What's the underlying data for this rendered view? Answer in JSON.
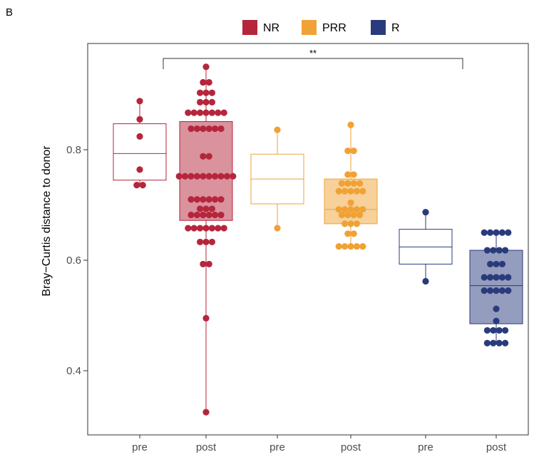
{
  "panel_label": "B",
  "chart_data": {
    "type": "box",
    "ylabel": "Bray−Curtis distance to donor",
    "ylim": [
      0.28,
      0.98
    ],
    "yticks": [
      0.4,
      0.6,
      0.8
    ],
    "ytick_labels": [
      "0.4",
      "0.6",
      "0.8"
    ],
    "legend": {
      "position": "top",
      "entries": [
        {
          "label": "NR",
          "color": "#b5263c"
        },
        {
          "label": "PRR",
          "color": "#f0a236"
        },
        {
          "label": "R",
          "color": "#2a3b7c"
        }
      ]
    },
    "significance": {
      "from": 1,
      "to": 4,
      "label": "**"
    },
    "groups": [
      {
        "category": "pre",
        "response": "NR",
        "color": "#b5263c",
        "filled": false,
        "box": {
          "q1": 0.745,
          "median": 0.793,
          "q3": 0.847,
          "whisker_low": 0.734,
          "whisker_high": 0.888
        },
        "points": [
          0.888,
          0.855,
          0.824,
          0.764,
          0.736,
          0.736
        ]
      },
      {
        "category": "post",
        "response": "NR",
        "color": "#b5263c",
        "filled": true,
        "box": {
          "q1": 0.672,
          "median": 0.752,
          "q3": 0.851,
          "whisker_low": 0.325,
          "whisker_high": 0.95
        },
        "points": [
          0.95,
          0.922,
          0.922,
          0.903,
          0.903,
          0.903,
          0.886,
          0.886,
          0.886,
          0.867,
          0.867,
          0.867,
          0.867,
          0.867,
          0.867,
          0.867,
          0.838,
          0.838,
          0.838,
          0.838,
          0.838,
          0.838,
          0.788,
          0.788,
          0.752,
          0.752,
          0.752,
          0.752,
          0.752,
          0.752,
          0.752,
          0.752,
          0.752,
          0.752,
          0.71,
          0.71,
          0.71,
          0.71,
          0.71,
          0.71,
          0.693,
          0.693,
          0.693,
          0.682,
          0.682,
          0.682,
          0.682,
          0.682,
          0.682,
          0.658,
          0.658,
          0.658,
          0.658,
          0.658,
          0.658,
          0.658,
          0.633,
          0.633,
          0.633,
          0.593,
          0.593,
          0.495,
          0.325
        ]
      },
      {
        "category": "pre",
        "response": "PRR",
        "color": "#f0a236",
        "filled": false,
        "box": {
          "q1": 0.702,
          "median": 0.747,
          "q3": 0.792,
          "whisker_low": 0.658,
          "whisker_high": 0.836
        },
        "points": [
          0.836,
          0.658
        ]
      },
      {
        "category": "post",
        "response": "PRR",
        "color": "#f0a236",
        "filled": true,
        "box": {
          "q1": 0.666,
          "median": 0.692,
          "q3": 0.747,
          "whisker_low": 0.625,
          "whisker_high": 0.845
        },
        "points": [
          0.845,
          0.798,
          0.798,
          0.755,
          0.755,
          0.739,
          0.739,
          0.739,
          0.739,
          0.725,
          0.725,
          0.725,
          0.725,
          0.725,
          0.704,
          0.692,
          0.692,
          0.692,
          0.692,
          0.692,
          0.682,
          0.682,
          0.682,
          0.682,
          0.666,
          0.666,
          0.666,
          0.648,
          0.648,
          0.625,
          0.625,
          0.625,
          0.625,
          0.625
        ]
      },
      {
        "category": "pre",
        "response": "R",
        "color": "#2a3b7c",
        "filled": false,
        "box": {
          "q1": 0.593,
          "median": 0.624,
          "q3": 0.656,
          "whisker_low": 0.562,
          "whisker_high": 0.687
        },
        "points": [
          0.687,
          0.562
        ]
      },
      {
        "category": "post",
        "response": "R",
        "color": "#2a3b7c",
        "filled": true,
        "box": {
          "q1": 0.485,
          "median": 0.554,
          "q3": 0.618,
          "whisker_low": 0.45,
          "whisker_high": 0.65
        },
        "points": [
          0.65,
          0.65,
          0.65,
          0.65,
          0.65,
          0.618,
          0.618,
          0.618,
          0.618,
          0.593,
          0.593,
          0.593,
          0.569,
          0.569,
          0.569,
          0.569,
          0.569,
          0.545,
          0.545,
          0.545,
          0.545,
          0.545,
          0.512,
          0.49,
          0.473,
          0.473,
          0.473,
          0.473,
          0.45,
          0.45,
          0.45,
          0.45
        ]
      }
    ]
  }
}
